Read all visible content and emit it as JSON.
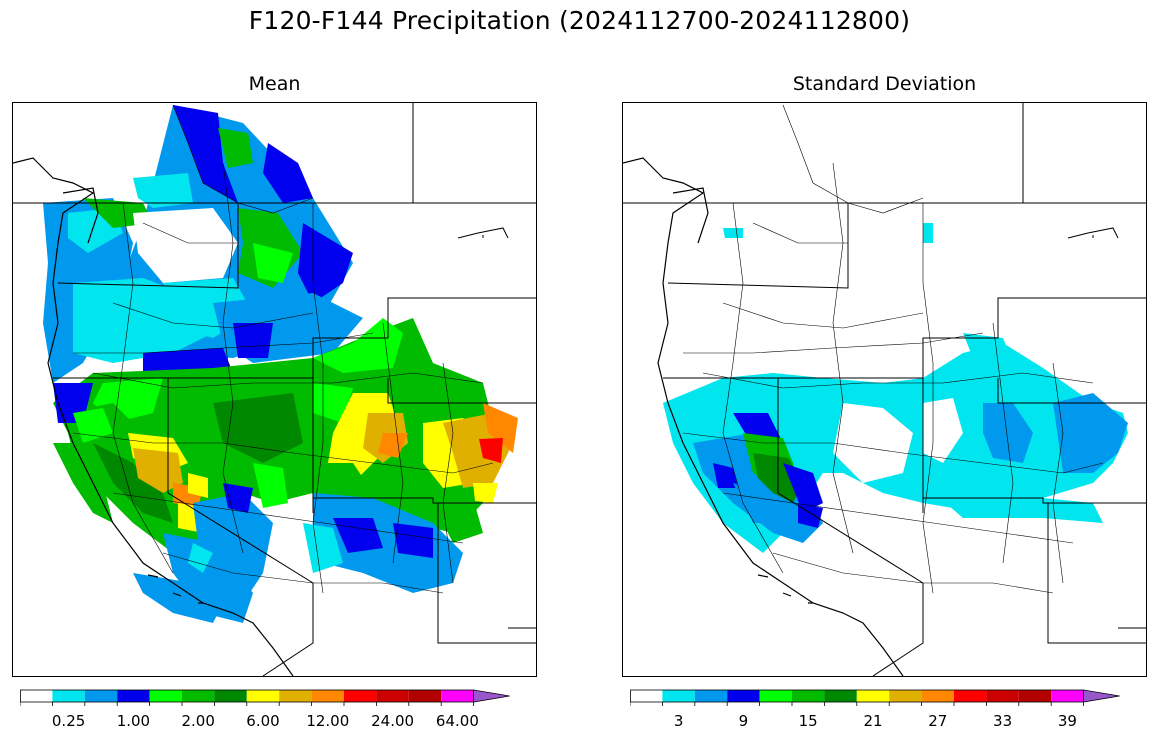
{
  "figure": {
    "title": "F120-F144 Precipitation (2024112700-2024112800)"
  },
  "colors": {
    "bins": [
      "#ffffff",
      "#00e5ee",
      "#0099ee",
      "#0000ee",
      "#00ff00",
      "#00bb00",
      "#008800",
      "#ffff00",
      "#e0b000",
      "#ff8800",
      "#ff0000",
      "#cc0000",
      "#b20000",
      "#ff00ff",
      "#9955cc"
    ]
  },
  "panels": [
    {
      "id": "mean",
      "title": "Mean",
      "colorbar_labels": [
        "0.25",
        "1.00",
        "2.00",
        "6.00",
        "12.00",
        "24.00",
        "64.00"
      ],
      "colorbar_label_bins": [
        1,
        3,
        5,
        7,
        9,
        11,
        13
      ]
    },
    {
      "id": "stddev",
      "title": "Standard Deviation",
      "colorbar_labels": [
        "3",
        "9",
        "15",
        "21",
        "27",
        "33",
        "39"
      ],
      "colorbar_label_bins": [
        1,
        3,
        5,
        7,
        9,
        11,
        13
      ]
    }
  ]
}
